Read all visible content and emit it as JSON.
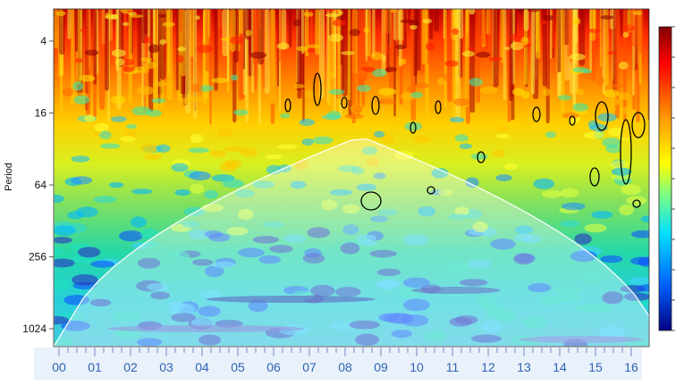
{
  "chart_data": {
    "type": "heatmap",
    "ylabel": "Period",
    "y_scale": "log2",
    "y_ticks": [
      "4",
      "16",
      "64",
      "256",
      "1024"
    ],
    "x_ticks": [
      "00",
      "01",
      "02",
      "03",
      "04",
      "05",
      "06",
      "07",
      "08",
      "09",
      "10",
      "11",
      "12",
      "13",
      "14",
      "15",
      "16"
    ],
    "colorbar": {
      "position": "right",
      "colormap": "jet",
      "low_color": "#000080",
      "high_color": "#800000"
    },
    "cone_of_influence": true,
    "significance_contours": true
  }
}
